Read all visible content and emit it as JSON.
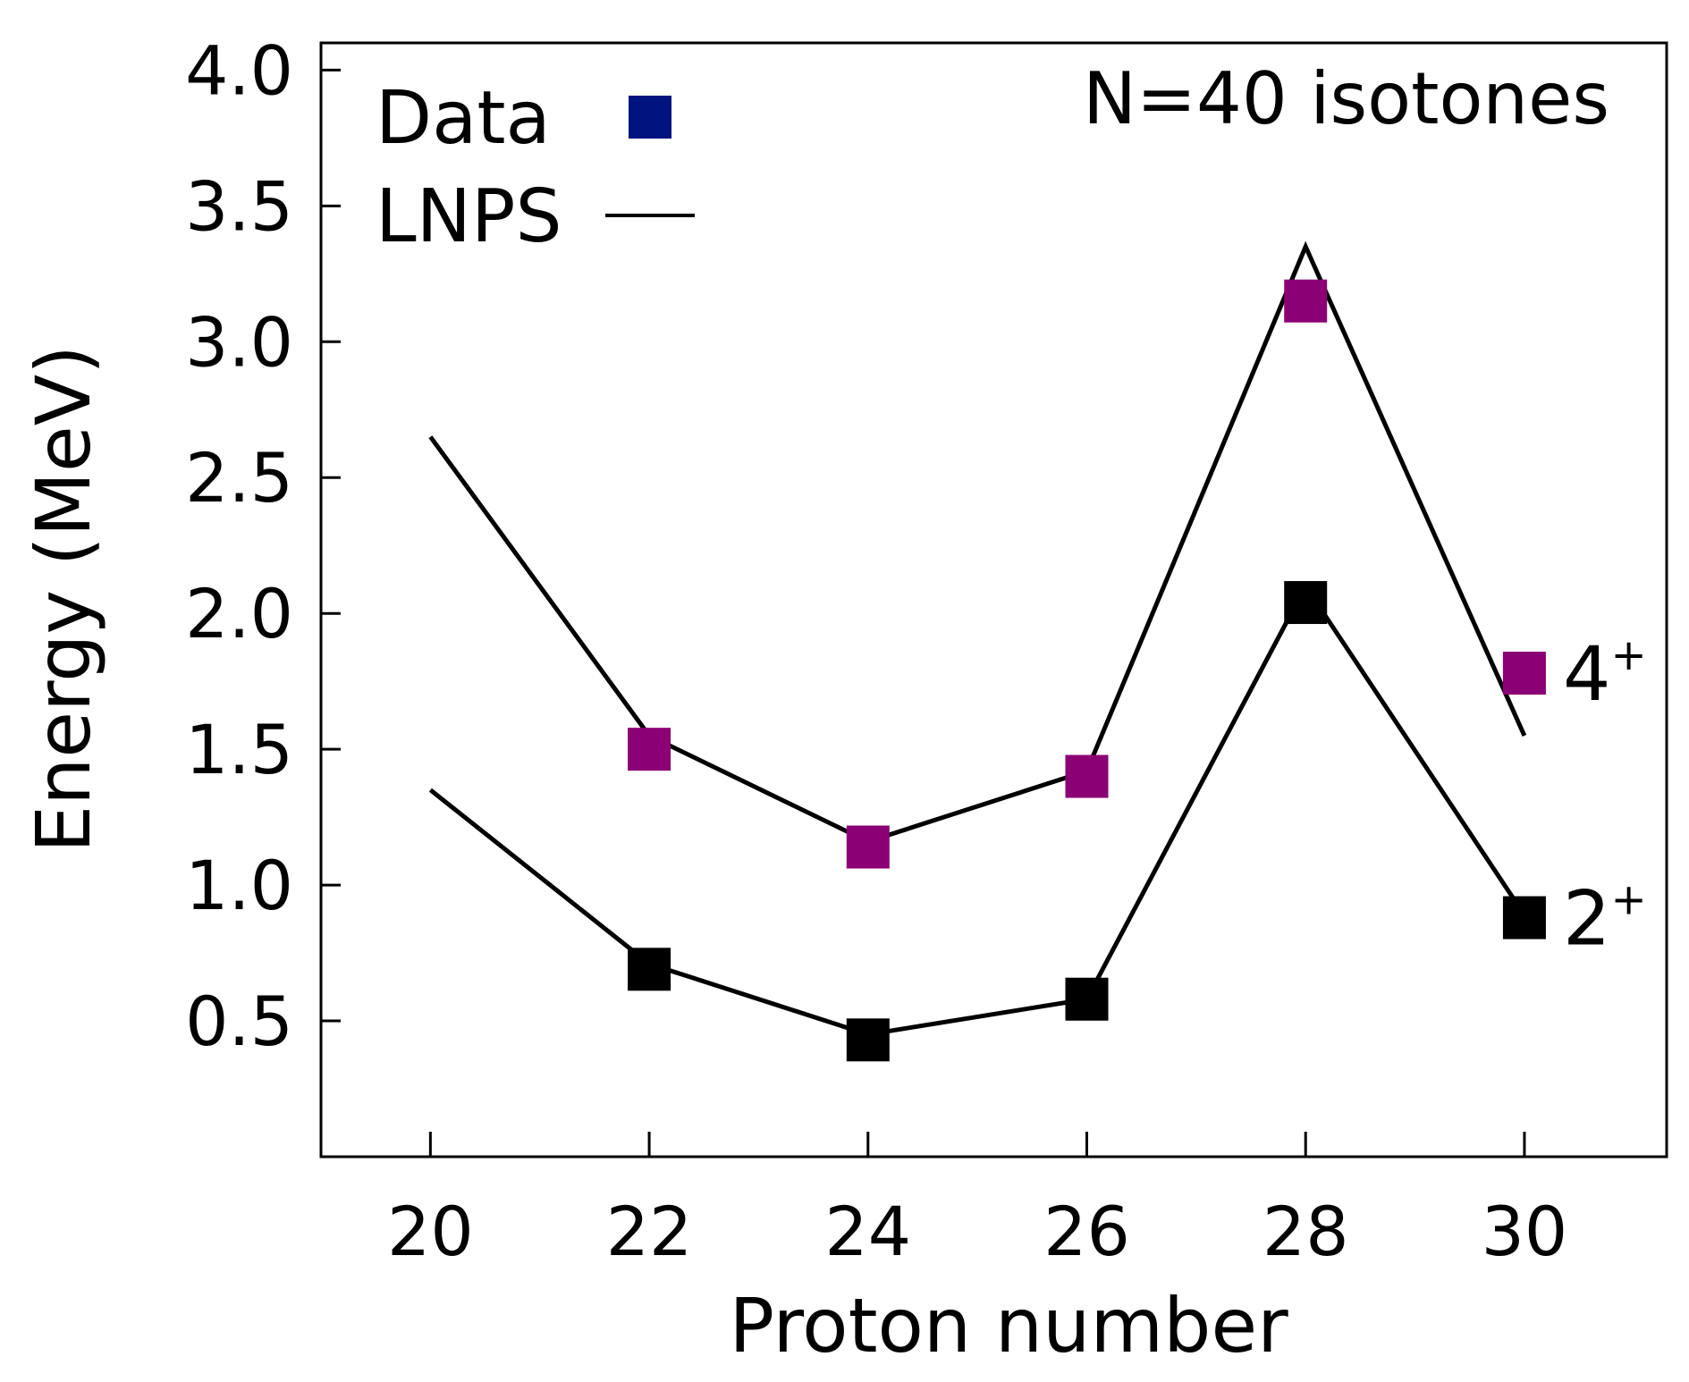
{
  "chart_data": {
    "type": "line",
    "title": "",
    "annotation": "N=40 isotones",
    "xlabel": "Proton number",
    "ylabel": "Energy (MeV)",
    "xlim": [
      19,
      31.3
    ],
    "ylim": [
      0,
      4.1
    ],
    "x_ticks": [
      20,
      22,
      24,
      26,
      28,
      30
    ],
    "x_tick_labels": [
      "20",
      "22",
      "24",
      "26",
      "28",
      "30"
    ],
    "y_ticks": [
      0.5,
      1.0,
      1.5,
      2.0,
      2.5,
      3.0,
      3.5,
      4.0
    ],
    "y_tick_labels": [
      "0.5",
      "1.0",
      "1.5",
      "2.0",
      "2.5",
      "3.0",
      "3.5",
      "4.0"
    ],
    "grid": false,
    "legend": {
      "placement": "top-left",
      "entries": [
        {
          "label": "Data",
          "marker": "square",
          "color": "#00137f"
        },
        {
          "label": "LNPS",
          "marker": "line",
          "color": "#000000"
        }
      ]
    },
    "series": [
      {
        "name": "4+ LNPS",
        "kind": "line",
        "color": "#000000",
        "x": [
          20,
          22,
          24,
          26,
          28,
          30
        ],
        "y": [
          2.65,
          1.55,
          1.16,
          1.42,
          3.35,
          1.55
        ]
      },
      {
        "name": "2+ LNPS",
        "kind": "line",
        "color": "#000000",
        "x": [
          20,
          22,
          24,
          26,
          28,
          30
        ],
        "y": [
          1.35,
          0.71,
          0.45,
          0.58,
          2.1,
          0.89
        ]
      },
      {
        "name": "4+ Data",
        "kind": "marker",
        "color": "#8b0074",
        "x": [
          22,
          24,
          26,
          28,
          30
        ],
        "y": [
          1.5,
          1.14,
          1.4,
          3.15,
          1.78
        ]
      },
      {
        "name": "2+ Data",
        "kind": "marker",
        "color": "#000000",
        "x": [
          22,
          24,
          26,
          28,
          30
        ],
        "y": [
          0.69,
          0.43,
          0.58,
          2.04,
          0.88
        ]
      }
    ],
    "level_labels": [
      {
        "base": "4",
        "sup": "+",
        "y": 1.78
      },
      {
        "base": "2",
        "sup": "+",
        "y": 0.88
      }
    ]
  }
}
